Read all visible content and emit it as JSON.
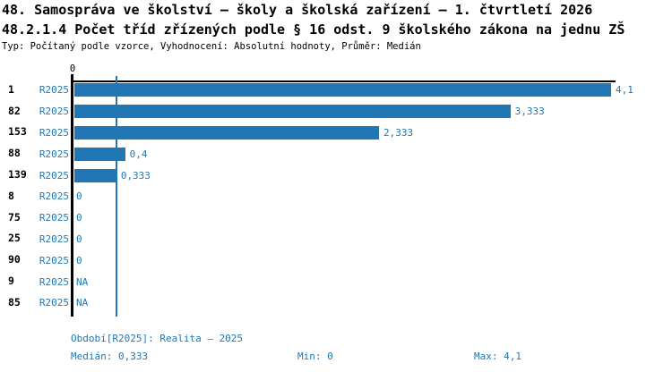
{
  "header": {
    "title": "48. Samospráva ve školství – školy a školská zařízení – 1. čtvrtletí 2026",
    "subtitle": "48.2.1.4 Počet tříd zřízených podle § 16 odst. 9 školského zákona na jednu ZŠ",
    "meta": "Typ: Počítaný podle vzorce, Vyhodnocení: Absolutní hodnoty, Průměr: Medián"
  },
  "colors": {
    "accent": "#2077b4",
    "text": "#000000"
  },
  "chart_data": {
    "type": "bar",
    "orientation": "horizontal",
    "categories": [
      "1",
      "82",
      "153",
      "88",
      "139",
      "8",
      "75",
      "25",
      "90",
      "9",
      "85"
    ],
    "series": [
      {
        "name": "R2025",
        "values": [
          4.1,
          3.333,
          2.333,
          0.4,
          0.333,
          0,
          0,
          0,
          0,
          null,
          null
        ]
      }
    ],
    "value_labels": [
      "4,1",
      "3,333",
      "2,333",
      "0,4",
      "0,333",
      "0",
      "0",
      "0",
      "0",
      "NA",
      "NA"
    ],
    "xlim": [
      0,
      4.1
    ],
    "x_ticks": [
      {
        "value": 0,
        "label": "0"
      }
    ],
    "median_line_value": 0.333,
    "bar_color": "#2077b4",
    "legend_position": "none",
    "grid": false
  },
  "footer": {
    "period": "Období[R2025]: Realita – 2025",
    "median": "Medián: 0,333",
    "min": "Min: 0",
    "max": "Max: 4,1"
  }
}
